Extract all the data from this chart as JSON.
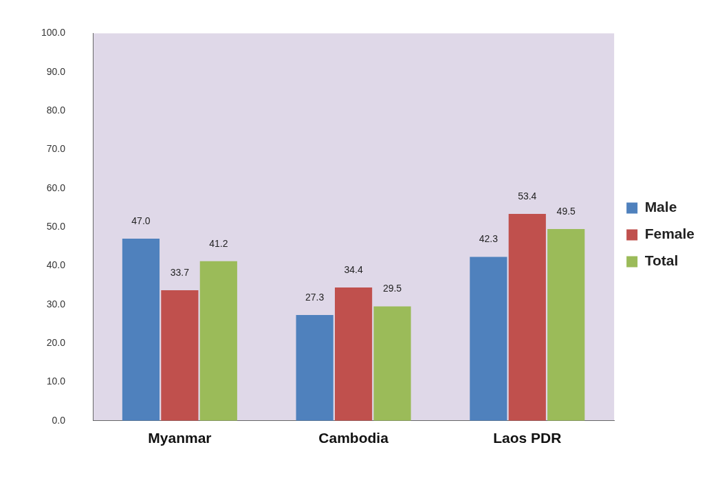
{
  "chart_data": {
    "type": "bar",
    "categories": [
      "Myanmar",
      "Cambodia",
      "Laos PDR"
    ],
    "series": [
      {
        "name": "Male",
        "color": "#4f81bd",
        "values": [
          47.0,
          27.3,
          42.3
        ],
        "value_labels": [
          "47.0",
          "27.3",
          "42.3"
        ]
      },
      {
        "name": "Female",
        "color": "#c0504d",
        "values": [
          33.7,
          34.4,
          53.4
        ],
        "value_labels": [
          "33.7",
          "34.4",
          "53.4"
        ]
      },
      {
        "name": "Total",
        "color": "#9bbb59",
        "values": [
          41.2,
          29.5,
          49.5
        ],
        "value_labels": [
          "41.2",
          "29.5",
          "49.5"
        ]
      }
    ],
    "ylim": [
      0,
      100
    ],
    "yticks": [
      {
        "value": 0,
        "label": "0.0"
      },
      {
        "value": 10,
        "label": "10.0"
      },
      {
        "value": 20,
        "label": "20.0"
      },
      {
        "value": 30,
        "label": "30.0"
      },
      {
        "value": 40,
        "label": "40.0"
      },
      {
        "value": 50,
        "label": "50.0"
      },
      {
        "value": 60,
        "label": "60.0"
      },
      {
        "value": 70,
        "label": "70.0"
      },
      {
        "value": 80,
        "label": "80.0"
      },
      {
        "value": 90,
        "label": "90.0"
      },
      {
        "value": 100,
        "label": "100.0"
      }
    ],
    "legend": "right"
  }
}
